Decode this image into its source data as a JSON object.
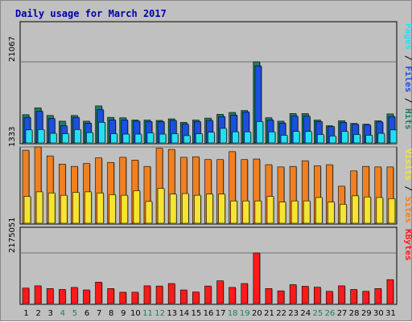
{
  "title": "Daily usage for March 2017",
  "colors": {
    "background": "#c0c0c0",
    "title": "#0000aa",
    "hits": "#1f7f5c",
    "files": "#1a4fe0",
    "pages": "#22e0f0",
    "visits": "#f08020",
    "sites": "#f5e430",
    "kbytes": "#ff1a1a",
    "weekend_label": "#1f7f5c"
  },
  "chart_data": [
    {
      "type": "bar",
      "title": "Daily usage for March 2017",
      "categories": [
        "1",
        "2",
        "3",
        "4",
        "5",
        "6",
        "7",
        "8",
        "9",
        "10",
        "11",
        "12",
        "13",
        "14",
        "15",
        "16",
        "17",
        "18",
        "19",
        "20",
        "21",
        "22",
        "23",
        "24",
        "25",
        "26",
        "27",
        "28",
        "29",
        "30",
        "31"
      ],
      "weekend_days": [
        "4",
        "5",
        "11",
        "12",
        "18",
        "19",
        "25",
        "26"
      ],
      "ylabel_parts": [
        "Hits",
        "Files",
        "Pages"
      ],
      "y_max_label": "21067",
      "ylim": [
        0,
        21067
      ],
      "series": [
        {
          "name": "Hits",
          "values": [
            7200,
            9000,
            7000,
            5500,
            7000,
            5500,
            9500,
            6500,
            6400,
            5800,
            5800,
            5700,
            6100,
            5200,
            5800,
            6300,
            7300,
            7800,
            8300,
            21067,
            6400,
            5500,
            7500,
            7500,
            5800,
            4300,
            5600,
            4900,
            4700,
            5600,
            7400
          ]
        },
        {
          "name": "Files",
          "values": [
            6500,
            8100,
            6200,
            4300,
            6500,
            5000,
            8500,
            5800,
            5800,
            5500,
            5400,
            5400,
            5700,
            4700,
            5400,
            5700,
            6700,
            7100,
            7900,
            20000,
            5800,
            5000,
            6800,
            6800,
            5400,
            4100,
            5200,
            4700,
            4500,
            5300,
            6700
          ]
        },
        {
          "name": "Pages",
          "values": [
            3200,
            3300,
            2300,
            2200,
            3300,
            2500,
            5200,
            2200,
            2100,
            2100,
            2400,
            2100,
            2200,
            1700,
            2200,
            2600,
            3600,
            2700,
            2700,
            5400,
            2700,
            1800,
            2800,
            2800,
            2000,
            1600,
            2800,
            2000,
            1800,
            2300,
            3200
          ]
        }
      ]
    },
    {
      "type": "bar",
      "categories": [
        "1",
        "2",
        "3",
        "4",
        "5",
        "6",
        "7",
        "8",
        "9",
        "10",
        "11",
        "12",
        "13",
        "14",
        "15",
        "16",
        "17",
        "18",
        "19",
        "20",
        "21",
        "22",
        "23",
        "24",
        "25",
        "26",
        "27",
        "28",
        "29",
        "30",
        "31"
      ],
      "ylabel_parts": [
        "Sites",
        "Visits"
      ],
      "y_max_label": "1333",
      "ylim": [
        0,
        1333
      ],
      "series": [
        {
          "name": "Visits",
          "values": [
            1275,
            1333,
            1175,
            1030,
            990,
            1040,
            1140,
            1060,
            1150,
            1100,
            990,
            1310,
            1290,
            1150,
            1160,
            1110,
            1110,
            1250,
            1110,
            1120,
            1020,
            980,
            990,
            1090,
            1000,
            1020,
            640,
            910,
            990,
            980,
            980
          ]
        },
        {
          "name": "Sites",
          "values": [
            460,
            540,
            520,
            480,
            530,
            540,
            520,
            490,
            480,
            560,
            370,
            600,
            500,
            510,
            480,
            500,
            500,
            380,
            380,
            380,
            460,
            360,
            380,
            380,
            440,
            360,
            320,
            470,
            450,
            440,
            420
          ]
        }
      ]
    },
    {
      "type": "bar",
      "categories": [
        "1",
        "2",
        "3",
        "4",
        "5",
        "6",
        "7",
        "8",
        "9",
        "10",
        "11",
        "12",
        "13",
        "14",
        "15",
        "16",
        "17",
        "18",
        "19",
        "20",
        "21",
        "22",
        "23",
        "24",
        "25",
        "26",
        "27",
        "28",
        "29",
        "30",
        "31"
      ],
      "ylabel_parts": [
        "KBytes"
      ],
      "y_max_label": "2175051",
      "ylim": [
        0,
        2175051
      ],
      "series": [
        {
          "name": "KBytes",
          "values": [
            640000,
            740000,
            620000,
            580000,
            670000,
            560000,
            900000,
            620000,
            460000,
            460000,
            740000,
            730000,
            840000,
            560000,
            470000,
            730000,
            960000,
            670000,
            840000,
            2175051,
            620000,
            520000,
            790000,
            720000,
            680000,
            500000,
            740000,
            580000,
            500000,
            620000,
            1010000
          ]
        }
      ]
    }
  ]
}
